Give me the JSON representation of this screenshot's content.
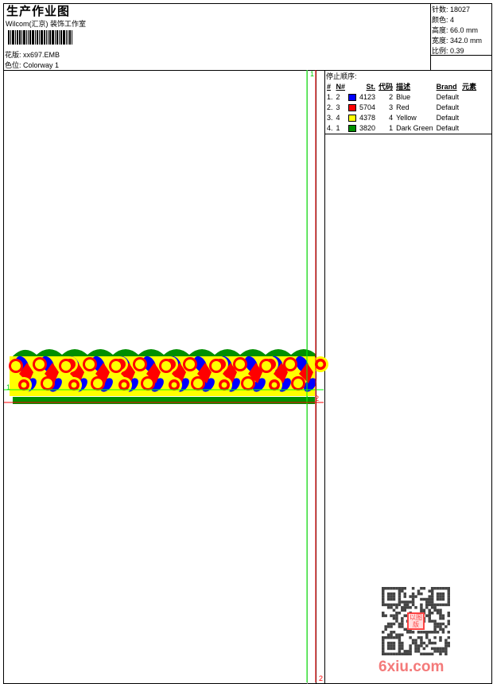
{
  "header": {
    "title": "生产作业图",
    "company": "Wilcom(汇京) 装饰工作室",
    "design_label": "花版:",
    "design_value": "xx697.EMB",
    "colorway_label": "色位:",
    "colorway_value": "Colorway 1"
  },
  "stats": [
    {
      "label": "针数:",
      "value": "18027"
    },
    {
      "label": "颜色:",
      "value": "4"
    },
    {
      "label": "高度:",
      "value": "66.0 mm"
    },
    {
      "label": "宽度:",
      "value": "342.0 mm"
    },
    {
      "label": "比例:",
      "value": "0.39"
    }
  ],
  "stop_sequence": {
    "title": "停止顺序:",
    "headers": [
      "#",
      "N#",
      "St.",
      "代码",
      "描述",
      "Brand",
      "元素"
    ],
    "rows": [
      {
        "idx": "1.",
        "n": "2",
        "color": "#0000ff",
        "st": "4123",
        "code": "2",
        "desc": "Blue",
        "brand": "Default"
      },
      {
        "idx": "2.",
        "n": "3",
        "color": "#ff0000",
        "st": "5704",
        "code": "3",
        "desc": "Red",
        "brand": "Default"
      },
      {
        "idx": "3.",
        "n": "4",
        "color": "#ffff00",
        "st": "4378",
        "code": "4",
        "desc": "Yellow",
        "brand": "Default"
      },
      {
        "idx": "4.",
        "n": "1",
        "color": "#008f00",
        "st": "3820",
        "code": "1",
        "desc": "Dark Green",
        "brand": "Default"
      }
    ]
  },
  "markers": {
    "start": "1",
    "end": "2",
    "start_color": "#00ff00",
    "end_color": "#ff0000"
  },
  "watermark": {
    "text": "6xiu.com",
    "seal": "以图版"
  }
}
